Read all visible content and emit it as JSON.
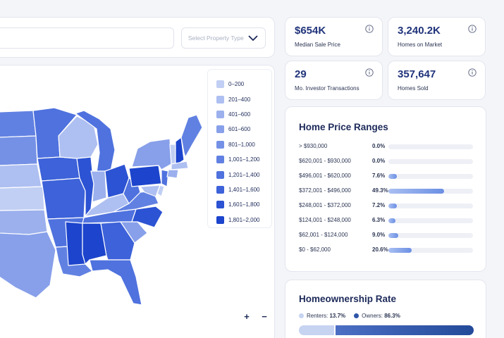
{
  "filter": {
    "search_placeholder": "",
    "property_type_placeholder": "Select Property Type"
  },
  "stats": [
    {
      "value": "$654K",
      "label": "Median Sale Price",
      "icon": "info-icon"
    },
    {
      "value": "3,240.2K",
      "label": "Homes on Market",
      "icon": "info-icon"
    },
    {
      "value": "29",
      "label": "Mo. Investor Transactions",
      "icon": "info-icon"
    },
    {
      "value": "357,647",
      "label": "Homes Sold",
      "icon": "info-icon"
    }
  ],
  "map": {
    "legend": [
      {
        "label": "0–200",
        "color": "#c1cff4"
      },
      {
        "label": "201–400",
        "color": "#aebff1"
      },
      {
        "label": "401–600",
        "color": "#9bb0ed"
      },
      {
        "label": "601–600",
        "color": "#88a0ea"
      },
      {
        "label": "801–1,000",
        "color": "#7591e6"
      },
      {
        "label": "1,001–1,200",
        "color": "#6181e2"
      },
      {
        "label": "1,201–1,400",
        "color": "#4f72de"
      },
      {
        "label": "1,401–1,600",
        "color": "#3d62d9"
      },
      {
        "label": "1,601–1,800",
        "color": "#2c53d3"
      },
      {
        "label": "1,801–2,000",
        "color": "#1c44cc"
      }
    ],
    "zoom_in": "+",
    "zoom_out": "−"
  },
  "price_ranges": {
    "title": "Home Price Ranges",
    "rows": [
      {
        "range": "> $930,000",
        "pct_label": "0.0%",
        "pct": 0.0
      },
      {
        "range": "$620,001 - $930,000",
        "pct_label": "0.0%",
        "pct": 0.0
      },
      {
        "range": "$496,001 - $620,000",
        "pct_label": "7.6%",
        "pct": 7.6
      },
      {
        "range": "$372,001 - $496,000",
        "pct_label": "49.3%",
        "pct": 49.3
      },
      {
        "range": "$248,001 - $372,000",
        "pct_label": "7.2%",
        "pct": 7.2
      },
      {
        "range": "$124,001 - $248,000",
        "pct_label": "6.3%",
        "pct": 6.3
      },
      {
        "range": "$62,001 - $124,000",
        "pct_label": "9.0%",
        "pct": 9.0
      },
      {
        "range": "$0 - $62,000",
        "pct_label": "20.6%",
        "pct": 20.6
      }
    ]
  },
  "homeownership": {
    "title": "Homeownership Rate",
    "renters_label": "Renters:",
    "renters_value": "13.7%",
    "owners_label": "Owners:",
    "owners_value": "86.3%",
    "renters_color": "#c6d3f1",
    "owners_color": "#2f55a8"
  }
}
